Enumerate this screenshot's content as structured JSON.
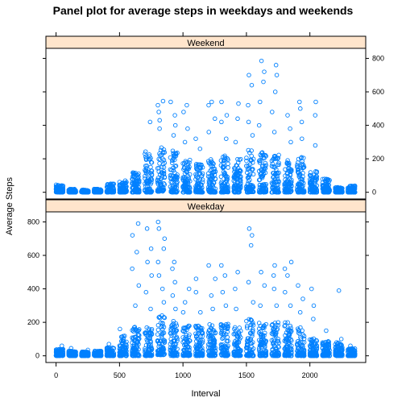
{
  "chart_data": {
    "type": "scatter",
    "title": "Panel plot for average steps in weekdays and weekends",
    "xlabel": "Interval",
    "ylabel": "Average Steps",
    "xlim": [
      -80,
      2440
    ],
    "ylim": [
      -40,
      860
    ],
    "x_ticks": [
      0,
      500,
      1000,
      1500,
      2000
    ],
    "y_ticks": [
      0,
      200,
      400,
      600,
      800
    ],
    "grid": false,
    "point_color": "#0080ff",
    "strip_color": "#ffe5cc",
    "panels": [
      {
        "name": "Weekend",
        "position": "top",
        "y_ticks_side": "right",
        "clusters": [
          {
            "start": 0,
            "end": 55,
            "baseline": 0,
            "max": 45,
            "tall": []
          },
          {
            "start": 100,
            "end": 155,
            "baseline": 0,
            "max": 20,
            "tall": []
          },
          {
            "start": 200,
            "end": 255,
            "baseline": 0,
            "max": 15,
            "tall": []
          },
          {
            "start": 300,
            "end": 355,
            "baseline": 0,
            "max": 20,
            "tall": []
          },
          {
            "start": 400,
            "end": 455,
            "baseline": 0,
            "max": 55,
            "tall": []
          },
          {
            "start": 500,
            "end": 555,
            "baseline": 0,
            "max": 70,
            "tall": []
          },
          {
            "start": 600,
            "end": 655,
            "baseline": 0,
            "max": 120,
            "tall": []
          },
          {
            "start": 700,
            "end": 755,
            "baseline": 0,
            "max": 260,
            "tall": [
              420
            ]
          },
          {
            "start": 800,
            "end": 855,
            "baseline": 5,
            "max": 280,
            "tall": [
              380,
              430,
              480,
              520,
              545
            ]
          },
          {
            "start": 900,
            "end": 955,
            "baseline": 0,
            "max": 250,
            "tall": [
              340,
              400,
              460,
              540
            ]
          },
          {
            "start": 1000,
            "end": 1055,
            "baseline": 0,
            "max": 210,
            "tall": [
              300,
              380,
              480,
              520
            ]
          },
          {
            "start": 1100,
            "end": 1155,
            "baseline": 0,
            "max": 180,
            "tall": [
              260,
              320
            ]
          },
          {
            "start": 1200,
            "end": 1255,
            "baseline": 0,
            "max": 210,
            "tall": [
              360,
              440,
              520,
              540
            ]
          },
          {
            "start": 1300,
            "end": 1355,
            "baseline": 0,
            "max": 220,
            "tall": [
              320,
              420,
              460,
              540
            ]
          },
          {
            "start": 1400,
            "end": 1455,
            "baseline": 0,
            "max": 200,
            "tall": [
              300,
              440,
              530
            ]
          },
          {
            "start": 1500,
            "end": 1555,
            "baseline": 0,
            "max": 260,
            "tall": [
              340,
              420,
              520,
              640,
              700
            ]
          },
          {
            "start": 1600,
            "end": 1655,
            "baseline": 0,
            "max": 240,
            "tall": [
              400,
              540,
              660,
              720,
              785
            ]
          },
          {
            "start": 1700,
            "end": 1755,
            "baseline": 0,
            "max": 230,
            "tall": [
              360,
              480,
              600,
              700,
              760
            ]
          },
          {
            "start": 1800,
            "end": 1855,
            "baseline": 0,
            "max": 200,
            "tall": [
              300,
              380,
              460
            ]
          },
          {
            "start": 1900,
            "end": 1955,
            "baseline": 0,
            "max": 210,
            "tall": [
              320,
              420,
              500,
              540
            ]
          },
          {
            "start": 2000,
            "end": 2055,
            "baseline": 0,
            "max": 130,
            "tall": [
              280,
              460,
              540
            ]
          },
          {
            "start": 2100,
            "end": 2155,
            "baseline": 0,
            "max": 80,
            "tall": []
          },
          {
            "start": 2200,
            "end": 2255,
            "baseline": 0,
            "max": 30,
            "tall": []
          },
          {
            "start": 2300,
            "end": 2355,
            "baseline": 0,
            "max": 40,
            "tall": []
          }
        ]
      },
      {
        "name": "Weekday",
        "position": "bottom",
        "y_ticks_side": "left",
        "clusters": [
          {
            "start": 0,
            "end": 55,
            "baseline": 0,
            "max": 40,
            "tall": [
              60
            ]
          },
          {
            "start": 100,
            "end": 155,
            "baseline": 0,
            "max": 30,
            "tall": [
              45
            ]
          },
          {
            "start": 200,
            "end": 255,
            "baseline": 0,
            "max": 25,
            "tall": [
              35
            ]
          },
          {
            "start": 300,
            "end": 355,
            "baseline": 0,
            "max": 30,
            "tall": []
          },
          {
            "start": 400,
            "end": 455,
            "baseline": 0,
            "max": 50,
            "tall": [
              70
            ]
          },
          {
            "start": 500,
            "end": 555,
            "baseline": 0,
            "max": 120,
            "tall": [
              160
            ]
          },
          {
            "start": 600,
            "end": 655,
            "baseline": 0,
            "max": 180,
            "tall": [
              300,
              420,
              520,
              620,
              720,
              790
            ]
          },
          {
            "start": 700,
            "end": 755,
            "baseline": 0,
            "max": 170,
            "tall": [
              280,
              380,
              480,
              560,
              640,
              760
            ]
          },
          {
            "start": 800,
            "end": 855,
            "baseline": 5,
            "max": 260,
            "tall": [
              320,
              400,
              480,
              560,
              640,
              700,
              760,
              800
            ]
          },
          {
            "start": 900,
            "end": 955,
            "baseline": 0,
            "max": 210,
            "tall": [
              280,
              360,
              440,
              520,
              560
            ]
          },
          {
            "start": 1000,
            "end": 1055,
            "baseline": 0,
            "max": 180,
            "tall": [
              260,
              320,
              400
            ]
          },
          {
            "start": 1100,
            "end": 1155,
            "baseline": 0,
            "max": 180,
            "tall": [
              260,
              380,
              460
            ]
          },
          {
            "start": 1200,
            "end": 1255,
            "baseline": 0,
            "max": 190,
            "tall": [
              280,
              360,
              460,
              540
            ]
          },
          {
            "start": 1300,
            "end": 1355,
            "baseline": 0,
            "max": 200,
            "tall": [
              300,
              380,
              480,
              540
            ]
          },
          {
            "start": 1400,
            "end": 1455,
            "baseline": 0,
            "max": 190,
            "tall": [
              280,
              400,
              500
            ]
          },
          {
            "start": 1500,
            "end": 1555,
            "baseline": 0,
            "max": 220,
            "tall": [
              320,
              440,
              660,
              720,
              760
            ]
          },
          {
            "start": 1600,
            "end": 1655,
            "baseline": 0,
            "max": 200,
            "tall": [
              300,
              420,
              500
            ]
          },
          {
            "start": 1700,
            "end": 1755,
            "baseline": 0,
            "max": 200,
            "tall": [
              300,
              400,
              480,
              540
            ]
          },
          {
            "start": 1800,
            "end": 1855,
            "baseline": 0,
            "max": 200,
            "tall": [
              300,
              380,
              480,
              520,
              560
            ]
          },
          {
            "start": 1900,
            "end": 1955,
            "baseline": 0,
            "max": 170,
            "tall": [
              260,
              340,
              420
            ]
          },
          {
            "start": 2000,
            "end": 2055,
            "baseline": 0,
            "max": 110,
            "tall": [
              220,
              300,
              400
            ]
          },
          {
            "start": 2100,
            "end": 2155,
            "baseline": 0,
            "max": 90,
            "tall": [
              150
            ]
          },
          {
            "start": 2200,
            "end": 2255,
            "baseline": 0,
            "max": 80,
            "tall": [
              100,
              390
            ]
          },
          {
            "start": 2300,
            "end": 2355,
            "baseline": 0,
            "max": 50,
            "tall": [
              60
            ]
          }
        ]
      }
    ]
  }
}
